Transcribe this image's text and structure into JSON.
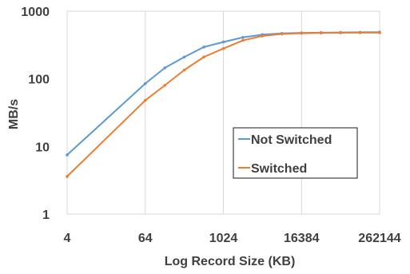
{
  "chart_data": {
    "type": "line",
    "xlabel": "Log Record Size (KB)",
    "ylabel": "MB/s",
    "x_scale": "log2",
    "y_scale": "log10",
    "xlim": [
      4,
      262144
    ],
    "ylim": [
      1,
      1000
    ],
    "x_ticks": [
      4,
      64,
      1024,
      16384,
      262144
    ],
    "x_tick_labels": [
      "4",
      "64",
      "1024",
      "16384",
      "262144"
    ],
    "y_ticks": [
      1,
      10,
      100,
      1000
    ],
    "y_tick_labels": [
      "1",
      "10",
      "100",
      "1000"
    ],
    "grid": "vertical",
    "legend": "right-middle",
    "series": [
      {
        "name": "Not Switched",
        "color": "#5B9BD5",
        "points": [
          [
            4,
            7.5
          ],
          [
            64,
            85
          ],
          [
            128,
            145
          ],
          [
            256,
            210
          ],
          [
            512,
            295
          ],
          [
            1024,
            350
          ],
          [
            2048,
            410
          ],
          [
            4096,
            450
          ],
          [
            8192,
            470
          ],
          [
            16384,
            478
          ],
          [
            32768,
            482
          ],
          [
            65536,
            485
          ],
          [
            131072,
            488
          ],
          [
            262144,
            490
          ]
        ]
      },
      {
        "name": "Switched",
        "color": "#ED7D31",
        "points": [
          [
            4,
            3.6
          ],
          [
            64,
            48
          ],
          [
            128,
            80
          ],
          [
            256,
            135
          ],
          [
            512,
            210
          ],
          [
            1024,
            280
          ],
          [
            2048,
            370
          ],
          [
            4096,
            430
          ],
          [
            8192,
            460
          ],
          [
            16384,
            472
          ],
          [
            32768,
            476
          ],
          [
            65536,
            479
          ],
          [
            131072,
            481
          ],
          [
            262144,
            482
          ]
        ]
      }
    ]
  }
}
